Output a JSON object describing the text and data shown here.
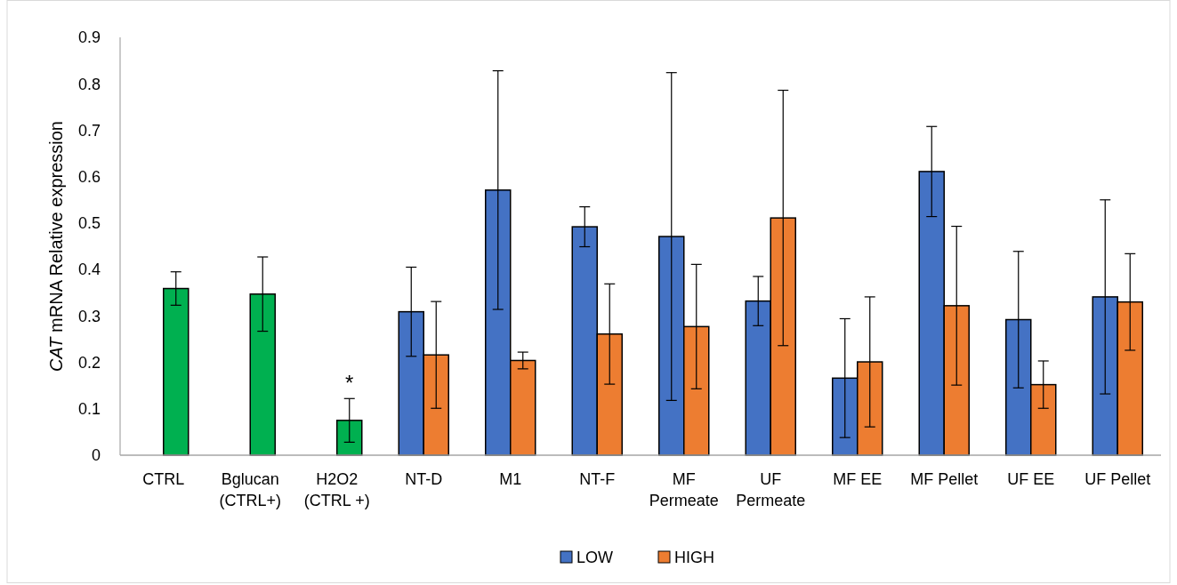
{
  "chart_data": {
    "type": "bar",
    "ylabel": "CAT mRNA Relative expression",
    "categories": [
      "CTRL",
      "Bglucan (CTRL+)",
      "H2O2 (CTRL +)",
      "NT-D",
      "M1",
      "NT-F",
      "MF Permeate",
      "UF Permeate",
      "MF EE",
      "MF Pellet",
      "UF EE",
      "UF Pellet"
    ],
    "series": [
      {
        "name": "LOW",
        "color": "#4472c4",
        "values": [
          0,
          0,
          0,
          0.309,
          0.571,
          0.492,
          0.471,
          0.332,
          0.166,
          0.611,
          0.292,
          0.341
        ],
        "errors": [
          null,
          null,
          null,
          0.096,
          0.257,
          0.043,
          0.353,
          0.053,
          0.128,
          0.097,
          0.147,
          0.209
        ]
      },
      {
        "name": "HIGH",
        "color": "#ed7d31",
        "colors": [
          "#00b050",
          "#00b050",
          "#00b050",
          "#ed7d31",
          "#ed7d31",
          "#ed7d31",
          "#ed7d31",
          "#ed7d31",
          "#ed7d31",
          "#ed7d31",
          "#ed7d31",
          "#ed7d31"
        ],
        "values": [
          0.359,
          0.347,
          0.075,
          0.216,
          0.204,
          0.261,
          0.277,
          0.511,
          0.201,
          0.322,
          0.152,
          0.33
        ],
        "errors": [
          0.036,
          0.08,
          0.047,
          0.115,
          0.018,
          0.108,
          0.134,
          0.275,
          0.14,
          0.171,
          0.051,
          0.104
        ]
      }
    ],
    "ylim": [
      0,
      0.9
    ],
    "yticks": [
      0,
      0.1,
      0.2,
      0.3,
      0.4,
      0.5,
      0.6,
      0.7,
      0.8,
      0.9
    ],
    "annotations": [
      {
        "text": "*",
        "x": "H2O2 (CTRL +)",
        "y": 0.075
      }
    ],
    "grid": false,
    "legend": "bottom"
  }
}
